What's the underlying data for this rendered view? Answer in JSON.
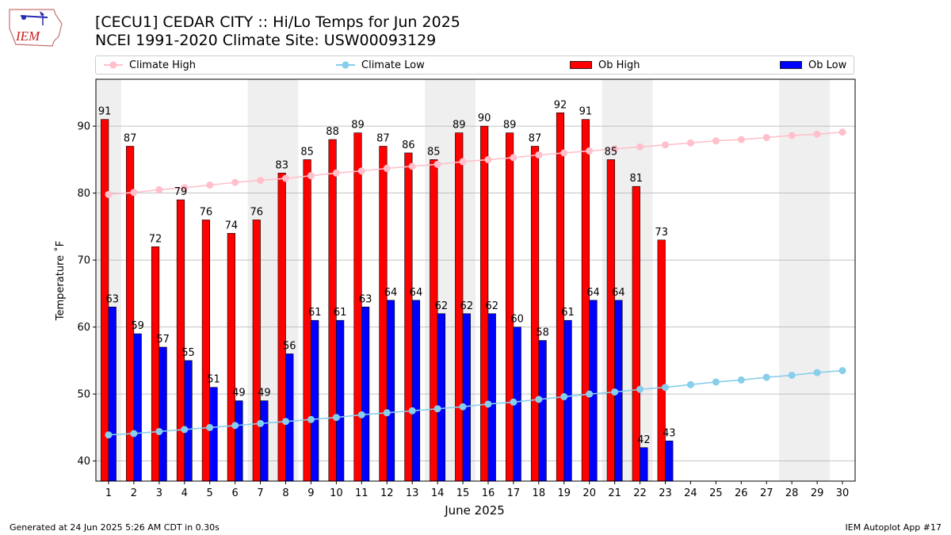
{
  "header": {
    "title_line1": "[CECU1] CEDAR CITY :: Hi/Lo Temps for Jun 2025",
    "title_line2": "NCEI 1991-2020 Climate Site: USW00093129",
    "logo_text": "IEM"
  },
  "legend": {
    "climate_high": "Climate High",
    "climate_low": "Climate Low",
    "ob_high": "Ob High",
    "ob_low": "Ob Low"
  },
  "footer": {
    "generated": "Generated at 24 Jun 2025 5:26 AM CDT in 0.30s",
    "app": "IEM Autoplot App #17"
  },
  "colors": {
    "ob_high": "#ff0000",
    "ob_low": "#0000ff",
    "climate_high": "#ffc0cb",
    "climate_low": "#87ceeb",
    "weekend_shade": "#efefef",
    "grid": "#b0b0b0"
  },
  "chart_data": {
    "type": "bar",
    "xlabel": "June 2025",
    "ylabel": "Temperature ˚F",
    "xlim": [
      0.5,
      30.5
    ],
    "ylim": [
      37,
      97
    ],
    "yticks": [
      40,
      50,
      60,
      70,
      80,
      90
    ],
    "grid": "horizontal",
    "legend_position": "top",
    "days": [
      1,
      2,
      3,
      4,
      5,
      6,
      7,
      8,
      9,
      10,
      11,
      12,
      13,
      14,
      15,
      16,
      17,
      18,
      19,
      20,
      21,
      22,
      23,
      24,
      25,
      26,
      27,
      28,
      29,
      30
    ],
    "weekend_shading": [
      [
        1,
        1
      ],
      [
        7,
        8
      ],
      [
        14,
        15
      ],
      [
        21,
        22
      ],
      [
        28,
        29
      ]
    ],
    "series": [
      {
        "name": "Ob High",
        "kind": "bar",
        "values": [
          91,
          87,
          72,
          79,
          76,
          74,
          76,
          83,
          85,
          88,
          89,
          87,
          86,
          85,
          89,
          90,
          89,
          87,
          92,
          91,
          85,
          81,
          73
        ]
      },
      {
        "name": "Ob Low",
        "kind": "bar",
        "values": [
          63,
          59,
          57,
          55,
          51,
          49,
          49,
          56,
          61,
          61,
          63,
          64,
          64,
          62,
          62,
          62,
          60,
          58,
          61,
          64,
          64,
          42,
          43
        ]
      },
      {
        "name": "Climate High",
        "kind": "line",
        "values": [
          79.8,
          80.1,
          80.5,
          80.8,
          81.2,
          81.6,
          81.9,
          82.2,
          82.6,
          83.0,
          83.3,
          83.7,
          84.0,
          84.3,
          84.7,
          85.0,
          85.3,
          85.7,
          86.0,
          86.3,
          86.6,
          86.9,
          87.2,
          87.5,
          87.8,
          88.0,
          88.3,
          88.6,
          88.8,
          89.1
        ]
      },
      {
        "name": "Climate Low",
        "kind": "line",
        "values": [
          43.9,
          44.1,
          44.4,
          44.7,
          45.0,
          45.3,
          45.6,
          45.9,
          46.2,
          46.5,
          46.9,
          47.2,
          47.5,
          47.8,
          48.1,
          48.5,
          48.8,
          49.2,
          49.6,
          50.0,
          50.3,
          50.7,
          51.0,
          51.4,
          51.8,
          52.1,
          52.5,
          52.8,
          53.2,
          53.5
        ]
      }
    ]
  }
}
